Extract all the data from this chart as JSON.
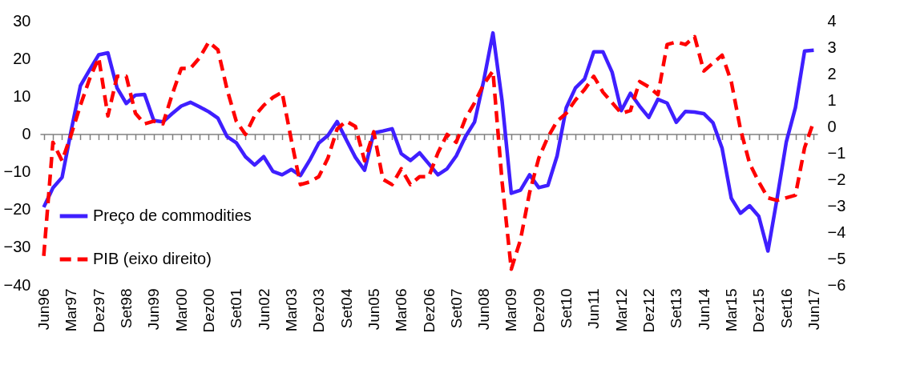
{
  "chart_data": {
    "type": "line",
    "categories": [
      "Jun96",
      null,
      null,
      "Mar97",
      null,
      null,
      "Dez97",
      null,
      null,
      "Set98",
      null,
      null,
      "Jun99",
      null,
      null,
      "Mar00",
      null,
      null,
      "Dez00",
      null,
      null,
      "Set01",
      null,
      null,
      "Jun02",
      null,
      null,
      "Mar03",
      null,
      null,
      "Dez03",
      null,
      null,
      "Set04",
      null,
      null,
      "Jun05",
      null,
      null,
      "Mar06",
      null,
      null,
      "Dez06",
      null,
      null,
      "Set07",
      null,
      null,
      "Jun08",
      null,
      null,
      "Mar09",
      null,
      null,
      "Dez09",
      null,
      null,
      "Set10",
      null,
      null,
      "Jun11",
      null,
      null,
      "Mar12",
      null,
      null,
      "Dez12",
      null,
      null,
      "Set13",
      null,
      null,
      "Jun14",
      null,
      null,
      "Mar15",
      null,
      null,
      "Dez15",
      null,
      null,
      "Set16",
      null,
      null,
      "Jun17"
    ],
    "series": [
      {
        "name": "Preço de commodities",
        "color": "#3f1fff",
        "line_style": "solid",
        "values": [
          -19.4,
          -14.3,
          -11.5,
          1,
          12.8,
          17,
          21,
          21.5,
          12.2,
          8.1,
          10.3,
          10.5,
          3.6,
          3.2,
          5.4,
          7.4,
          8.4,
          7.2,
          5.9,
          4.2,
          -0.7,
          -2.3,
          -6,
          -8.2,
          -6,
          -9.9,
          -10.8,
          -9.4,
          -11,
          -7,
          -2.4,
          -0.4,
          3.3,
          -1.5,
          -6.2,
          -9.6,
          0.3,
          0.8,
          1.4,
          -5.2,
          -7,
          -5,
          -7.9,
          -10.8,
          -9.2,
          -5.8,
          -0.7,
          3.2,
          14.2,
          26.8,
          8.7,
          -15.7,
          -14.9,
          -10.8,
          -14.2,
          -13.6,
          -5.8,
          7,
          12.2,
          14.6,
          21.8,
          21.8,
          16.4,
          6.2,
          10.8,
          7.4,
          4.4,
          9.2,
          8.2,
          3.1,
          6,
          5.8,
          5.4,
          3,
          -3.8,
          -17,
          -21,
          -19,
          -21.8,
          -31,
          -17,
          -2.1,
          7,
          22,
          22.2
        ]
      },
      {
        "name": "PIB (eixo direito)",
        "color": "#ff0000",
        "line_style": "dashed",
        "axis": "y2",
        "values": [
          -4.9,
          -0.6,
          -1.3,
          -0.3,
          0.8,
          1.8,
          2.6,
          0.4,
          1.9,
          1.9,
          0.5,
          0.1,
          0.2,
          0.1,
          1.2,
          2.2,
          2.2,
          2.6,
          3.2,
          2.9,
          1.4,
          0.2,
          -0.3,
          0.4,
          0.8,
          1.1,
          1.3,
          -0.5,
          -2.2,
          -2.1,
          -1.9,
          -1.2,
          -0.1,
          0.2,
          0,
          -1.3,
          -0.2,
          -2,
          -2.2,
          -1.6,
          -2.2,
          -1.9,
          -1.9,
          -1,
          -0.3,
          -0.6,
          0.3,
          0.9,
          1.6,
          2.1,
          -2.1,
          -5.4,
          -4.3,
          -2.5,
          -1.2,
          -0.4,
          0.2,
          0.5,
          1,
          1.4,
          1.9,
          1.3,
          0.9,
          0.5,
          0.6,
          1.7,
          1.5,
          1.2,
          3.1,
          3.2,
          3.1,
          3.4,
          2.1,
          2.4,
          2.7,
          1.7,
          -0.1,
          -1.4,
          -2.1,
          -2.7,
          -2.8,
          -2.7,
          -2.6,
          -0.8,
          0.2
        ]
      }
    ],
    "ylim": [
      -40,
      30
    ],
    "yticks": [
      -40,
      -30,
      -20,
      -10,
      0,
      10,
      20,
      30
    ],
    "y2lim": [
      -6,
      4
    ],
    "y2ticks": [
      -6,
      -5,
      -4,
      -3,
      -2,
      -1,
      0,
      1,
      2,
      3,
      4
    ],
    "legend": "bottom left"
  }
}
